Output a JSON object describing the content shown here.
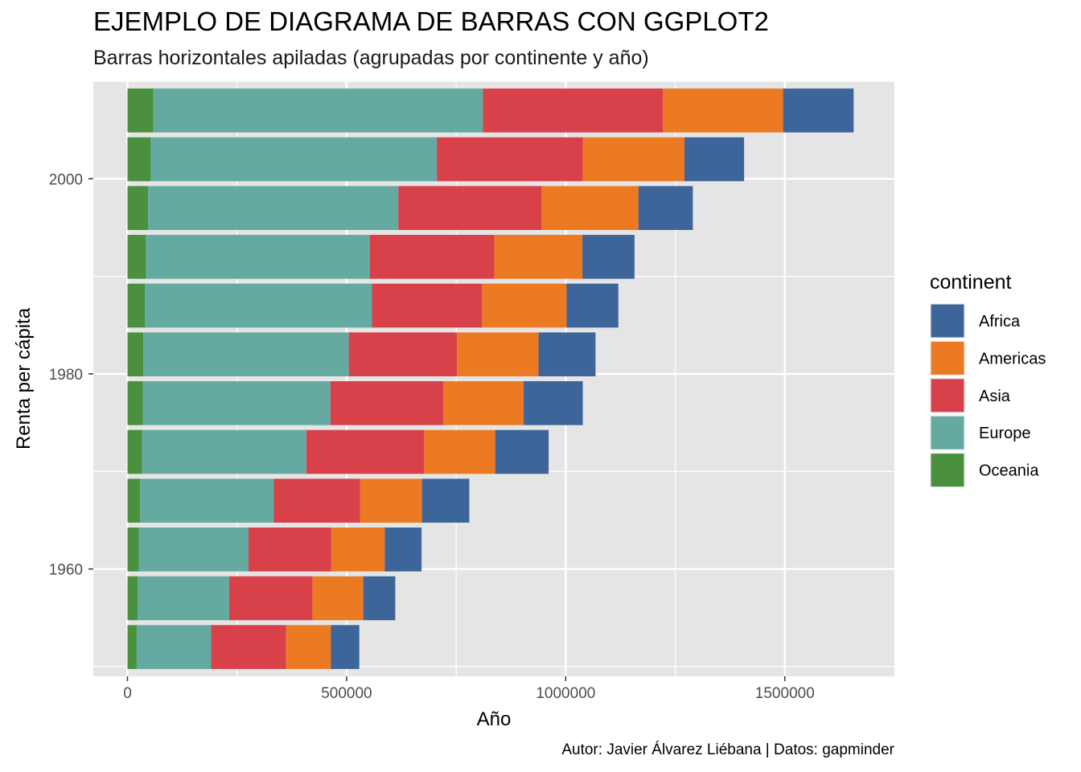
{
  "title": "EJEMPLO DE DIAGRAMA DE BARRAS CON GGPLOT2",
  "subtitle": "Barras horizontales apiladas (agrupadas por continente y año)",
  "caption": "Autor: Javier Álvarez Liébana | Datos: gapminder",
  "colors": {
    "panel": "#e5e5e5",
    "grid": "#ffffff",
    "Africa": "#3d6599",
    "Americas": "#ec7a22",
    "Asia": "#d8404a",
    "Europe": "#65aaa1",
    "Oceania": "#4a903f"
  },
  "chart_data": {
    "type": "bar",
    "orientation": "horizontal",
    "stacked": true,
    "xlabel": "Año",
    "ylabel": "Renta per cápita",
    "xlim": [
      -78000,
      1750000
    ],
    "ylim": [
      1949,
      2010
    ],
    "x_ticks": [
      0,
      500000,
      1000000,
      1500000
    ],
    "x_tick_labels": [
      "0",
      "500000",
      "1000000",
      "1500000"
    ],
    "y_ticks": [
      1960,
      1980,
      2000
    ],
    "y_tick_labels": [
      "1960",
      "1980",
      "2000"
    ],
    "grid": true,
    "legend_title": "continent",
    "legend_position": "right",
    "legend_order": [
      "Africa",
      "Americas",
      "Asia",
      "Europe",
      "Oceania"
    ],
    "stack_order": [
      "Oceania",
      "Europe",
      "Asia",
      "Americas",
      "Africa"
    ],
    "categories": [
      1952,
      1957,
      1962,
      1967,
      1972,
      1977,
      1982,
      1987,
      1992,
      1997,
      2002,
      2007
    ],
    "series": [
      {
        "name": "Oceania",
        "values": [
          21000,
          23000,
          26000,
          29000,
          33000,
          35000,
          36000,
          40000,
          42000,
          47000,
          53000,
          59000
        ]
      },
      {
        "name": "Europe",
        "values": [
          170000,
          209000,
          250000,
          305000,
          375000,
          428000,
          469000,
          518000,
          511000,
          571000,
          653000,
          752000
        ]
      },
      {
        "name": "Asia",
        "values": [
          171000,
          190000,
          189000,
          197000,
          269000,
          258000,
          247000,
          251000,
          284000,
          327000,
          333000,
          411000
        ]
      },
      {
        "name": "Americas",
        "values": [
          102000,
          116000,
          122000,
          141000,
          162000,
          183000,
          186000,
          193000,
          201000,
          221000,
          232000,
          274000
        ]
      },
      {
        "name": "Africa",
        "values": [
          65000,
          73000,
          84000,
          108000,
          122000,
          135000,
          130000,
          118000,
          119000,
          124000,
          136000,
          161000
        ]
      }
    ]
  }
}
